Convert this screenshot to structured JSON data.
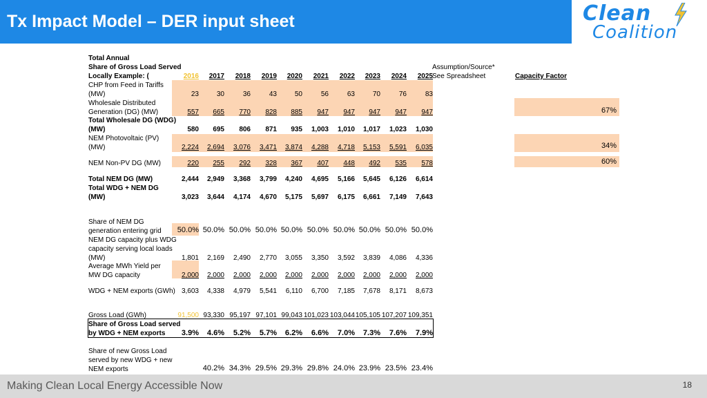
{
  "header": {
    "title": "Tx Impact Model – DER input sheet"
  },
  "logo": {
    "line1": "Clean",
    "line2": "Coalition"
  },
  "footer": {
    "text": "Making Clean Local Energy Accessible Now",
    "page": "18"
  },
  "colors": {
    "header_bg": "#1e88e5",
    "shaded_cell": "#fcd5b4",
    "highlight_year": "#f1c232",
    "footer_bg": "#d9d9d9"
  },
  "table": {
    "header_lines": [
      "Total Annual",
      "Share of Gross Load Served",
      "Locally Example: ("
    ],
    "assumption_lines": [
      "Assumption/Source*",
      "See Spreadsheet"
    ],
    "capacity_factor_label": "Capacity Factor",
    "years": [
      "2016",
      "2017",
      "2018",
      "2019",
      "2020",
      "2021",
      "2022",
      "2023",
      "2024",
      "2025"
    ],
    "rows": [
      {
        "label": [
          "CHP from Feed in Tariffs",
          "(MW)"
        ],
        "values": [
          "23",
          "30",
          "36",
          "43",
          "50",
          "56",
          "63",
          "70",
          "76",
          "83"
        ]
      },
      {
        "label": [
          "Wholesale Distributed",
          "Generation (DG) (MW)"
        ],
        "values": [
          "557",
          "665",
          "770",
          "828",
          "885",
          "947",
          "947",
          "947",
          "947",
          "947"
        ],
        "cf": "67%"
      },
      {
        "label": [
          "Total Wholesale DG (WDG)",
          "(MW)"
        ],
        "values": [
          "580",
          "695",
          "806",
          "871",
          "935",
          "1,003",
          "1,010",
          "1,017",
          "1,023",
          "1,030"
        ]
      },
      {
        "label": [
          "NEM Photovoltaic (PV)",
          "(MW)"
        ],
        "values": [
          "2,224",
          "2,694",
          "3,076",
          "3,471",
          "3,874",
          "4,288",
          "4,718",
          "5,153",
          "5,591",
          "6,035"
        ],
        "cf": "34%"
      },
      {
        "label": [
          "NEM Non-PV DG (MW)"
        ],
        "values": [
          "220",
          "255",
          "292",
          "328",
          "367",
          "407",
          "448",
          "492",
          "535",
          "578"
        ],
        "cf": "60%"
      },
      {
        "label": [
          "Total NEM DG (MW)"
        ],
        "values": [
          "2,444",
          "2,949",
          "3,368",
          "3,799",
          "4,240",
          "4,695",
          "5,166",
          "5,645",
          "6,126",
          "6,614"
        ]
      },
      {
        "label": [
          "Total WDG + NEM DG",
          "(MW)"
        ],
        "values": [
          "3,023",
          "3,644",
          "4,174",
          "4,670",
          "5,175",
          "5,697",
          "6,175",
          "6,661",
          "7,149",
          "7,643"
        ]
      },
      {
        "label": [
          "Share of NEM DG",
          "generation entering grid"
        ],
        "values": [
          "50.0%",
          "50.0%",
          "50.0%",
          "50.0%",
          "50.0%",
          "50.0%",
          "50.0%",
          "50.0%",
          "50.0%",
          "50.0%"
        ]
      },
      {
        "label": [
          "NEM DG capacity plus WDG",
          "capacity serving local loads",
          "(MW)"
        ],
        "values": [
          "1,801",
          "2,169",
          "2,490",
          "2,770",
          "3,055",
          "3,350",
          "3,592",
          "3,839",
          "4,086",
          "4,336"
        ]
      },
      {
        "label": [
          "Average MWh Yield per",
          "MW DG capacity"
        ],
        "values": [
          "2,000",
          "2,000",
          "2,000",
          "2,000",
          "2,000",
          "2,000",
          "2,000",
          "2,000",
          "2,000",
          "2,000"
        ]
      },
      {
        "label": [
          "WDG + NEM exports (GWh)"
        ],
        "values": [
          "3,603",
          "4,338",
          "4,979",
          "5,541",
          "6,110",
          "6,700",
          "7,185",
          "7,678",
          "8,171",
          "8,673"
        ]
      },
      {
        "label": [
          "Gross Load (GWh)"
        ],
        "values": [
          "91,500",
          "93,330",
          "95,197",
          "97,101",
          "99,043",
          "101,023",
          "103,044",
          "105,105",
          "107,207",
          "109,351"
        ]
      },
      {
        "label": [
          "Share of Gross Load served",
          "by WDG + NEM exports"
        ],
        "values": [
          "3.9%",
          "4.6%",
          "5.2%",
          "5.7%",
          "6.2%",
          "6.6%",
          "7.0%",
          "7.3%",
          "7.6%",
          "7.9%"
        ]
      },
      {
        "label": [
          "Share of new Gross Load",
          "served by new WDG + new",
          "NEM exports"
        ],
        "values": [
          "",
          "40.2%",
          "34.3%",
          "29.5%",
          "29.3%",
          "29.8%",
          "24.0%",
          "23.9%",
          "23.5%",
          "23.4%"
        ]
      }
    ]
  }
}
